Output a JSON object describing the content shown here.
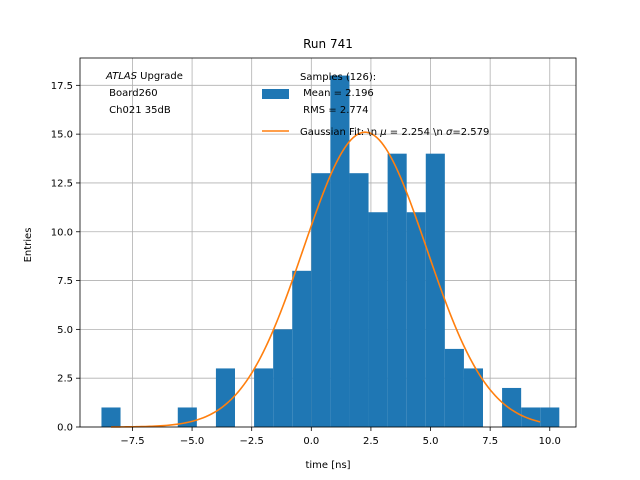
{
  "chart_data": {
    "type": "bar",
    "title": "Run 741",
    "xlabel": "time [ns]",
    "ylabel": "Entries",
    "xlim": [
      -9.7,
      11.1
    ],
    "ylim": [
      0,
      18.9
    ],
    "grid": true,
    "xticks": [
      -7.5,
      -5.0,
      -2.5,
      0.0,
      2.5,
      5.0,
      7.5,
      10.0
    ],
    "xtick_labels": [
      "−7.5",
      "−5.0",
      "−2.5",
      "0.0",
      "2.5",
      "5.0",
      "7.5",
      "10.0"
    ],
    "yticks": [
      0.0,
      2.5,
      5.0,
      7.5,
      10.0,
      12.5,
      15.0,
      17.5
    ],
    "ytick_labels": [
      "0.0",
      "2.5",
      "5.0",
      "7.5",
      "10.0",
      "12.5",
      "15.0",
      "17.5"
    ],
    "histogram": {
      "color": "#1f77b4",
      "bins": [
        {
          "x0": -8.8,
          "x1": -8.0,
          "count": 1
        },
        {
          "x0": -5.6,
          "x1": -4.8,
          "count": 1
        },
        {
          "x0": -4.0,
          "x1": -3.2,
          "count": 3
        },
        {
          "x0": -2.4,
          "x1": -1.6,
          "count": 3
        },
        {
          "x0": -1.6,
          "x1": -0.8,
          "count": 5
        },
        {
          "x0": -0.8,
          "x1": 0.0,
          "count": 8
        },
        {
          "x0": 0.0,
          "x1": 0.8,
          "count": 13
        },
        {
          "x0": 0.8,
          "x1": 1.6,
          "count": 18
        },
        {
          "x0": 1.6,
          "x1": 2.4,
          "count": 13
        },
        {
          "x0": 2.4,
          "x1": 3.2,
          "count": 11
        },
        {
          "x0": 3.2,
          "x1": 4.0,
          "count": 14
        },
        {
          "x0": 4.0,
          "x1": 4.8,
          "count": 11
        },
        {
          "x0": 4.8,
          "x1": 5.6,
          "count": 14
        },
        {
          "x0": 5.6,
          "x1": 6.4,
          "count": 4
        },
        {
          "x0": 6.4,
          "x1": 7.2,
          "count": 3
        },
        {
          "x0": 8.0,
          "x1": 8.8,
          "count": 2
        },
        {
          "x0": 8.8,
          "x1": 9.6,
          "count": 1
        },
        {
          "x0": 9.6,
          "x1": 10.4,
          "count": 1
        }
      ]
    },
    "fit": {
      "color": "#ff7f0e",
      "function": "gaussian",
      "mu": 2.254,
      "sigma": 2.579,
      "amplitude": 15.1,
      "x_range": [
        -8.4,
        9.6
      ]
    },
    "annotation": {
      "experiment": "ATLAS",
      "experiment_suffix": " Upgrade",
      "line2": " Board260",
      "line3": " Ch021 35dB"
    },
    "legend": {
      "placement": "top-right",
      "hist_line1": "Samples (126):",
      "hist_line2": " Mean = 2.196",
      "hist_line3": " RMS = 2.774",
      "fit_prefix": "Gaussian Fit: \\n ",
      "fit_mu_symbol": "μ",
      "fit_mid": " = 2.254 \\n ",
      "fit_sigma_symbol": "σ",
      "fit_suffix": "=2.579"
    }
  }
}
